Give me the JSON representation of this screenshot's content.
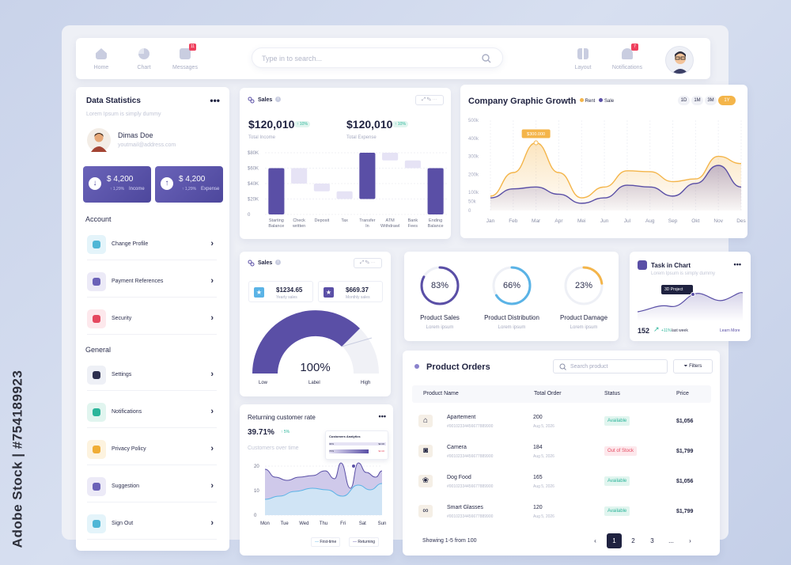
{
  "watermark": "Adobe Stock | #754189923",
  "nav": {
    "left": [
      {
        "label": "Home",
        "icon": "home-icon"
      },
      {
        "label": "Chart",
        "icon": "pie-chart-icon"
      },
      {
        "label": "Messages",
        "icon": "message-icon",
        "badge": "11"
      }
    ],
    "search_placeholder": "Type in to search...",
    "right": [
      {
        "label": "Layout",
        "icon": "layout-icon"
      },
      {
        "label": "Notifications",
        "icon": "bell-icon",
        "badge": "7"
      }
    ]
  },
  "sidebar": {
    "title": "Data Statistics",
    "subtitle": "Lorem Ipsum is simply dummy",
    "user_name": "Dimas Doe",
    "user_email": "youtmail@address.com",
    "income": {
      "amount": "$ 4,200",
      "pct": "↑ 1,29%",
      "label": "Income"
    },
    "expense": {
      "amount": "$ 4,200",
      "pct": "↑ 1,29%",
      "label": "Expense"
    },
    "account_heading": "Account",
    "account_items": [
      {
        "label": "Change Profile",
        "icon": "user-icon",
        "color": "#4fb6d6",
        "bg": "#e4f4fa"
      },
      {
        "label": "Payment References",
        "icon": "dollar-icon",
        "color": "#6b62b8",
        "bg": "#eceaf7"
      },
      {
        "label": "Security",
        "icon": "lock-icon",
        "color": "#e5485f",
        "bg": "#fde8ec"
      }
    ],
    "general_heading": "General",
    "general_items": [
      {
        "label": "Settings",
        "icon": "gear-icon",
        "color": "#2c2f4e",
        "bg": "#eef0f6"
      },
      {
        "label": "Notifications",
        "icon": "bell-icon",
        "color": "#2bb59a",
        "bg": "#e1f5ef"
      },
      {
        "label": "Privacy Policy",
        "icon": "shield-icon",
        "color": "#f0ad35",
        "bg": "#fdf3df"
      },
      {
        "label": "Suggestion",
        "icon": "mail-icon",
        "color": "#6b62b8",
        "bg": "#eceaf7"
      },
      {
        "label": "Sign Out",
        "icon": "logout-icon",
        "color": "#4fb6d6",
        "bg": "#e4f4fa"
      }
    ]
  },
  "sales_top": {
    "title": "Sales",
    "income_value": "$120,010",
    "income_pct": "↑ 10%",
    "income_label": "Total Income",
    "expense_value": "$120,010",
    "expense_pct": "↑ 10%",
    "expense_label": "Total Expense",
    "y_ticks": [
      "$80K",
      "$60K",
      "$40K",
      "$20K",
      "0"
    ],
    "categories": [
      [
        "Starting",
        "Balance"
      ],
      [
        "Check",
        "written"
      ],
      [
        "Deposit"
      ],
      [
        "Tax"
      ],
      [
        "Transfer",
        "In"
      ],
      [
        "ATM",
        "Withdrawl"
      ],
      [
        "Bank",
        "Fees"
      ],
      [
        "Ending",
        "Balance"
      ]
    ]
  },
  "chart_data": {
    "type": "bar",
    "title": "Sales",
    "categories": [
      "Starting Balance",
      "Check written",
      "Deposit",
      "Tax",
      "Transfer In",
      "ATM Withdrawl",
      "Bank Fees",
      "Ending Balance"
    ],
    "ranges": [
      [
        0,
        60
      ],
      [
        40,
        60
      ],
      [
        30,
        40
      ],
      [
        20,
        30
      ],
      [
        20,
        80
      ],
      [
        70,
        80
      ],
      [
        60,
        70
      ],
      [
        0,
        60
      ]
    ],
    "ylim": [
      0,
      80
    ]
  },
  "growth": {
    "title": "Company Graphic Growth",
    "legend": [
      {
        "name": "Rent",
        "color": "#f4b54a"
      },
      {
        "name": "Sale",
        "color": "#5a4fa6"
      }
    ],
    "ranges": [
      "1D",
      "1M",
      "3M",
      "1Y"
    ],
    "active_range": "1Y",
    "tooltip": "$300.000",
    "y_ticks": [
      "500k",
      "400k",
      "300k",
      "200k",
      "100k",
      "50k",
      "0"
    ],
    "months": [
      "Jan",
      "Feb",
      "Mar",
      "Apr",
      "Mei",
      "Jun",
      "Jul",
      "Aug",
      "Sep",
      "Okt",
      "Nov",
      "Des"
    ],
    "rent": [
      80,
      210,
      375,
      210,
      70,
      130,
      220,
      215,
      160,
      175,
      300,
      260
    ],
    "sale": [
      70,
      120,
      130,
      90,
      40,
      70,
      140,
      130,
      80,
      150,
      250,
      130
    ]
  },
  "sales2": {
    "title": "Sales",
    "yearly_value": "$1234.65",
    "yearly_label": "Yearly sales",
    "monthly_value": "$669.37",
    "monthly_label": "Monthly sales",
    "gauge_value": "100%",
    "gauge_label": "Label",
    "low": "Low",
    "high": "High"
  },
  "products": [
    {
      "pct": "83%",
      "value": 83,
      "label": "Product Sales",
      "sub": "Lorem ipsum",
      "color": "#5a4fa6"
    },
    {
      "pct": "66%",
      "value": 66,
      "label": "Product Distribution",
      "sub": "Lorem ipsum",
      "color": "#5ab3e6"
    },
    {
      "pct": "23%",
      "value": 23,
      "label": "Product Damage",
      "sub": "Lorem ipsum",
      "color": "#f4b54a"
    }
  ],
  "task": {
    "title": "Task in Chart",
    "subtitle": "Lorem Ipsum is simply dummy",
    "tooltip": "3D Project",
    "count": "152",
    "pct": "+11%",
    "period": "last week",
    "link": "Learn More"
  },
  "returning": {
    "title": "Returning customer rate",
    "value": "39.71%",
    "pct": "↑ 5%",
    "sublabel": "Customers over time",
    "mini_title": "Customers Analytics",
    "mini_a": "$2.00",
    "mini_b": "$2.00",
    "mini_c": "30%",
    "mini_d": "70%",
    "y_ticks": [
      "20",
      "10",
      "0"
    ],
    "days": [
      "Mon",
      "Tue",
      "Wed",
      "Thu",
      "Fri",
      "Sat",
      "Sun"
    ],
    "legend": [
      "First-time",
      "Returning"
    ]
  },
  "orders": {
    "title": "Product Orders",
    "search_placeholder": "Search product",
    "filter_label": "Filters",
    "headers": [
      "Product Name",
      "Total Order",
      "Status",
      "Price"
    ],
    "rows": [
      {
        "name": "Apartement",
        "id": "#00102334456677889900",
        "total": "200",
        "date": "Aug 5, 2026",
        "status": "Available",
        "price": "$1,056",
        "icon": "house-icon",
        "status_color": "#2bb59a",
        "status_bg": "#e1f5ef"
      },
      {
        "name": "Camera",
        "id": "#00102334456677889900",
        "total": "184",
        "date": "Aug 5, 2026",
        "status": "Out of Stock",
        "price": "$1,799",
        "icon": "camera-icon",
        "status_color": "#e5485f",
        "status_bg": "#fde8ec"
      },
      {
        "name": "Dog Food",
        "id": "#00102334456677889900",
        "total": "165",
        "date": "Aug 5, 2026",
        "status": "Available",
        "price": "$1,056",
        "icon": "dog-icon",
        "status_color": "#2bb59a",
        "status_bg": "#e1f5ef"
      },
      {
        "name": "Smart Glasses",
        "id": "#00102334456677889900",
        "total": "120",
        "date": "Aug 5, 2026",
        "status": "Available",
        "price": "$1,799",
        "icon": "glasses-icon",
        "status_color": "#2bb59a",
        "status_bg": "#e1f5ef"
      }
    ],
    "showing": "Showing 1-5 from 100",
    "pages": [
      "1",
      "2",
      "3",
      "..."
    ],
    "active_page": "1"
  }
}
